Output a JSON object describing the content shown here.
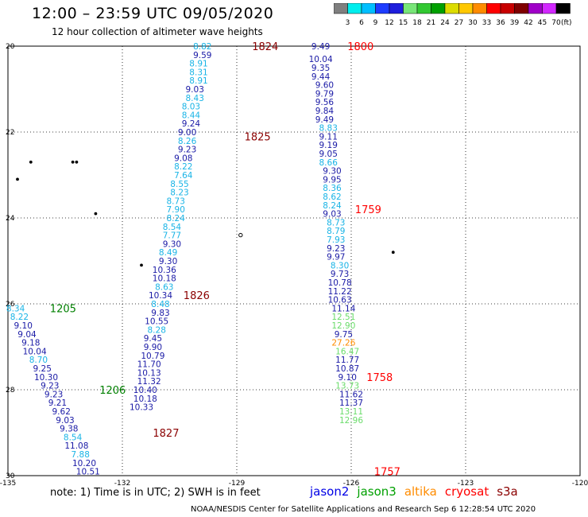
{
  "header": {
    "title": "12:00 – 23:59 UTC 09/05/2020",
    "subtitle": "12 hour collection of altimeter wave heights"
  },
  "scale": {
    "unit": "(ft)",
    "labels": [
      "3",
      "6",
      "9",
      "12",
      "15",
      "18",
      "21",
      "24",
      "27",
      "30",
      "33",
      "36",
      "39",
      "42",
      "45",
      "70"
    ],
    "colors": [
      "#7f7f7f",
      "#00eeee",
      "#00bfff",
      "#1e3cff",
      "#1e1edc",
      "#78e678",
      "#32c832",
      "#00a000",
      "#dcdc00",
      "#ffc800",
      "#ff8c00",
      "#ff0000",
      "#c80000",
      "#7f0000",
      "#a000c8",
      "#d228ff",
      "#000000"
    ]
  },
  "map": {
    "xticks": [
      {
        "v": -135,
        "t": "-135"
      },
      {
        "v": -132,
        "t": "-132"
      },
      {
        "v": -129,
        "t": "-129"
      },
      {
        "v": -126,
        "t": "-126"
      },
      {
        "v": -123,
        "t": "-123"
      },
      {
        "v": -120,
        "t": "-120"
      }
    ],
    "yticks": [
      {
        "v": 20,
        "t": "20"
      },
      {
        "v": 22,
        "t": "22"
      },
      {
        "v": 24,
        "t": "24"
      },
      {
        "v": 26,
        "t": "26"
      },
      {
        "v": 28,
        "t": "28"
      },
      {
        "v": 30,
        "t": "30"
      }
    ],
    "islands": [
      {
        "lon": -134.4,
        "lat": 22.7,
        "shape": "dot"
      },
      {
        "lon": -134.75,
        "lat": 23.1,
        "shape": "dot"
      },
      {
        "lon": -133.3,
        "lat": 22.7,
        "shape": "dot"
      },
      {
        "lon": -133.2,
        "lat": 22.7,
        "shape": "dot"
      },
      {
        "lon": -132.7,
        "lat": 23.9,
        "shape": "dot"
      },
      {
        "lon": -131.5,
        "lat": 25.1,
        "shape": "dot"
      },
      {
        "lon": -128.9,
        "lat": 24.4,
        "shape": "ring"
      },
      {
        "lon": -124.9,
        "lat": 24.8,
        "shape": "dot"
      }
    ]
  },
  "chart_data": {
    "type": "scatter",
    "title": "12:00 – 23:59 UTC 09/05/2020",
    "subtitle": "12 hour collection of altimeter wave heights",
    "x_axis": {
      "range": [
        -135,
        -120
      ],
      "ticks": [
        -135,
        -132,
        -129,
        -126,
        -123,
        -120
      ]
    },
    "y_axis": {
      "range": [
        20,
        30
      ],
      "ticks": [
        20,
        22,
        24,
        26,
        28,
        30
      ]
    },
    "grid": true,
    "value_unit": "ft",
    "series": [
      {
        "name": "jason2",
        "color": "#0000c8",
        "time_labels": [
          {
            "t": "1824",
            "lon": -128.6,
            "lat": 20.0,
            "color": "#8b0000"
          },
          {
            "t": "1825",
            "lon": -128.8,
            "lat": 22.1,
            "color": "#8b0000"
          },
          {
            "t": "1826",
            "lon": -130.4,
            "lat": 25.8,
            "color": "#8b0000"
          },
          {
            "t": "1827",
            "lon": -131.2,
            "lat": 29.0,
            "color": "#8b0000"
          }
        ],
        "points": [
          {
            "lon": -129.9,
            "lat": 20.0,
            "v": "8.82"
          },
          {
            "lon": -129.9,
            "lat": 20.2,
            "v": "9.59"
          },
          {
            "lon": -130.0,
            "lat": 20.4,
            "v": "8.91"
          },
          {
            "lon": -130.0,
            "lat": 20.6,
            "v": "8.31"
          },
          {
            "lon": -130.0,
            "lat": 20.8,
            "v": "8.91"
          },
          {
            "lon": -130.1,
            "lat": 21.0,
            "v": "9.03"
          },
          {
            "lon": -130.1,
            "lat": 21.2,
            "v": "8.43"
          },
          {
            "lon": -130.2,
            "lat": 21.4,
            "v": "8.03"
          },
          {
            "lon": -130.2,
            "lat": 21.6,
            "v": "8.44"
          },
          {
            "lon": -130.2,
            "lat": 21.8,
            "v": "9.24"
          },
          {
            "lon": -130.3,
            "lat": 22.0,
            "v": "9.00"
          },
          {
            "lon": -130.3,
            "lat": 22.2,
            "v": "8.26"
          },
          {
            "lon": -130.3,
            "lat": 22.4,
            "v": "9.23"
          },
          {
            "lon": -130.4,
            "lat": 22.6,
            "v": "9.08"
          },
          {
            "lon": -130.4,
            "lat": 22.8,
            "v": "8.22"
          },
          {
            "lon": -130.4,
            "lat": 23.0,
            "v": "7.64"
          },
          {
            "lon": -130.5,
            "lat": 23.2,
            "v": "8.55"
          },
          {
            "lon": -130.5,
            "lat": 23.4,
            "v": "8.23"
          },
          {
            "lon": -130.6,
            "lat": 23.6,
            "v": "8.73"
          },
          {
            "lon": -130.6,
            "lat": 23.8,
            "v": "7.90"
          },
          {
            "lon": -130.6,
            "lat": 24.0,
            "v": "8.24"
          },
          {
            "lon": -130.7,
            "lat": 24.2,
            "v": "8.54"
          },
          {
            "lon": -130.7,
            "lat": 24.4,
            "v": "7.77"
          },
          {
            "lon": -130.7,
            "lat": 24.6,
            "v": "9.30"
          },
          {
            "lon": -130.8,
            "lat": 24.8,
            "v": "8.49"
          },
          {
            "lon": -130.8,
            "lat": 25.0,
            "v": "9.30"
          },
          {
            "lon": -130.9,
            "lat": 25.2,
            "v": "10.36"
          },
          {
            "lon": -130.9,
            "lat": 25.4,
            "v": "10.18"
          },
          {
            "lon": -130.9,
            "lat": 25.6,
            "v": "8.63"
          },
          {
            "lon": -131.0,
            "lat": 25.8,
            "v": "10.34"
          },
          {
            "lon": -131.0,
            "lat": 26.0,
            "v": "8.48"
          },
          {
            "lon": -131.0,
            "lat": 26.2,
            "v": "9.83"
          },
          {
            "lon": -131.1,
            "lat": 26.4,
            "v": "10.55"
          },
          {
            "lon": -131.1,
            "lat": 26.6,
            "v": "8.28"
          },
          {
            "lon": -131.2,
            "lat": 26.8,
            "v": "9.45"
          },
          {
            "lon": -131.2,
            "lat": 27.0,
            "v": "9.90"
          },
          {
            "lon": -131.2,
            "lat": 27.2,
            "v": "10.79"
          },
          {
            "lon": -131.3,
            "lat": 27.4,
            "v": "11.70"
          },
          {
            "lon": -131.3,
            "lat": 27.6,
            "v": "10.13"
          },
          {
            "lon": -131.3,
            "lat": 27.8,
            "v": "11.32"
          },
          {
            "lon": -131.4,
            "lat": 28.0,
            "v": "10.40"
          },
          {
            "lon": -131.4,
            "lat": 28.2,
            "v": "10.18"
          },
          {
            "lon": -131.5,
            "lat": 28.4,
            "v": "10.33"
          }
        ]
      },
      {
        "name": "jason3",
        "color": "#00a000",
        "time_labels": [
          {
            "t": "1205",
            "lon": -133.9,
            "lat": 26.1,
            "color": "#008000"
          },
          {
            "t": "1206",
            "lon": -132.6,
            "lat": 28.0,
            "color": "#008000"
          }
        ],
        "points": [
          {
            "lon": -134.8,
            "lat": 26.1,
            "v": "8.34"
          },
          {
            "lon": -134.7,
            "lat": 26.3,
            "v": "8.22"
          },
          {
            "lon": -134.6,
            "lat": 26.5,
            "v": "9.10"
          },
          {
            "lon": -134.5,
            "lat": 26.7,
            "v": "9.04"
          },
          {
            "lon": -134.4,
            "lat": 26.9,
            "v": "9.18"
          },
          {
            "lon": -134.3,
            "lat": 27.1,
            "v": "10.04"
          },
          {
            "lon": -134.2,
            "lat": 27.3,
            "v": "8.70"
          },
          {
            "lon": -134.1,
            "lat": 27.5,
            "v": "9.25"
          },
          {
            "lon": -134.0,
            "lat": 27.7,
            "v": "10.30"
          },
          {
            "lon": -133.9,
            "lat": 27.9,
            "v": "9.23"
          },
          {
            "lon": -133.8,
            "lat": 28.1,
            "v": "9.23"
          },
          {
            "lon": -133.7,
            "lat": 28.3,
            "v": "9.21"
          },
          {
            "lon": -133.6,
            "lat": 28.5,
            "v": "9.62"
          },
          {
            "lon": -133.5,
            "lat": 28.7,
            "v": "9.03"
          },
          {
            "lon": -133.4,
            "lat": 28.9,
            "v": "9.38"
          },
          {
            "lon": -133.3,
            "lat": 29.1,
            "v": "8.54"
          },
          {
            "lon": -133.2,
            "lat": 29.3,
            "v": "11.08"
          },
          {
            "lon": -133.1,
            "lat": 29.5,
            "v": "7.88"
          },
          {
            "lon": -133.0,
            "lat": 29.7,
            "v": "10.20"
          },
          {
            "lon": -132.9,
            "lat": 29.9,
            "v": "10.51"
          }
        ]
      },
      {
        "name": "altika",
        "color": "#ff8c00",
        "time_labels": [
          {
            "t": "1800",
            "lon": -126.1,
            "lat": 20.0,
            "color": "#ff0000"
          },
          {
            "t": "1759",
            "lon": -125.9,
            "lat": 23.8,
            "color": "#ff0000"
          },
          {
            "t": "1758",
            "lon": -125.6,
            "lat": 27.7,
            "color": "#ff0000"
          },
          {
            "t": "1757",
            "lon": -125.4,
            "lat": 29.9,
            "color": "#ff0000"
          }
        ],
        "points": [
          {
            "lon": -126.8,
            "lat": 20.0,
            "v": "9.49"
          },
          {
            "lon": -126.8,
            "lat": 20.3,
            "v": "10.04"
          },
          {
            "lon": -126.8,
            "lat": 20.5,
            "v": "9.35"
          },
          {
            "lon": -126.8,
            "lat": 20.7,
            "v": "9.44"
          },
          {
            "lon": -126.7,
            "lat": 20.9,
            "v": "9.60"
          },
          {
            "lon": -126.7,
            "lat": 21.1,
            "v": "9.79"
          },
          {
            "lon": -126.7,
            "lat": 21.3,
            "v": "9.56"
          },
          {
            "lon": -126.7,
            "lat": 21.5,
            "v": "9.84"
          },
          {
            "lon": -126.7,
            "lat": 21.7,
            "v": "9.49"
          },
          {
            "lon": -126.6,
            "lat": 21.9,
            "v": "8.83"
          },
          {
            "lon": -126.6,
            "lat": 22.1,
            "v": "9.11"
          },
          {
            "lon": -126.6,
            "lat": 22.3,
            "v": "9.19"
          },
          {
            "lon": -126.6,
            "lat": 22.5,
            "v": "9.05"
          },
          {
            "lon": -126.6,
            "lat": 22.7,
            "v": "8.66"
          },
          {
            "lon": -126.5,
            "lat": 22.9,
            "v": "9.30"
          },
          {
            "lon": -126.5,
            "lat": 23.1,
            "v": "9.95"
          },
          {
            "lon": -126.5,
            "lat": 23.3,
            "v": "8.36"
          },
          {
            "lon": -126.5,
            "lat": 23.5,
            "v": "8.62"
          },
          {
            "lon": -126.5,
            "lat": 23.7,
            "v": "8.24"
          },
          {
            "lon": -126.5,
            "lat": 23.9,
            "v": "9.03"
          },
          {
            "lon": -126.4,
            "lat": 24.1,
            "v": "8.73"
          },
          {
            "lon": -126.4,
            "lat": 24.3,
            "v": "8.79"
          },
          {
            "lon": -126.4,
            "lat": 24.5,
            "v": "7.93"
          },
          {
            "lon": -126.4,
            "lat": 24.7,
            "v": "9.23"
          },
          {
            "lon": -126.4,
            "lat": 24.9,
            "v": "9.97"
          },
          {
            "lon": -126.3,
            "lat": 25.1,
            "v": "8.30"
          },
          {
            "lon": -126.3,
            "lat": 25.3,
            "v": "9.73"
          },
          {
            "lon": -126.3,
            "lat": 25.5,
            "v": "10.78"
          },
          {
            "lon": -126.3,
            "lat": 25.7,
            "v": "11.22"
          },
          {
            "lon": -126.3,
            "lat": 25.9,
            "v": "10.63"
          },
          {
            "lon": -126.2,
            "lat": 26.1,
            "v": "11.14"
          },
          {
            "lon": -126.2,
            "lat": 26.3,
            "v": "12.51"
          },
          {
            "lon": -126.2,
            "lat": 26.5,
            "v": "12.90"
          },
          {
            "lon": -126.2,
            "lat": 26.7,
            "v": "9.75"
          },
          {
            "lon": -126.2,
            "lat": 26.9,
            "v": "27.26"
          },
          {
            "lon": -126.1,
            "lat": 27.1,
            "v": "16.47"
          },
          {
            "lon": -126.1,
            "lat": 27.3,
            "v": "11.77"
          },
          {
            "lon": -126.1,
            "lat": 27.5,
            "v": "10.87"
          },
          {
            "lon": -126.1,
            "lat": 27.7,
            "v": "9.10"
          },
          {
            "lon": -126.1,
            "lat": 27.9,
            "v": "13.73"
          },
          {
            "lon": -126.0,
            "lat": 28.1,
            "v": "11.62"
          },
          {
            "lon": -126.0,
            "lat": 28.3,
            "v": "11.37"
          },
          {
            "lon": -126.0,
            "lat": 28.5,
            "v": "13.11"
          },
          {
            "lon": -126.0,
            "lat": 28.7,
            "v": "12.96"
          }
        ]
      }
    ]
  },
  "footer": {
    "note": "note:  1) Time is in UTC;  2) SWH is in feet",
    "satellites": [
      {
        "name": "jason2",
        "color": "#0000e6"
      },
      {
        "name": "jason3",
        "color": "#00a000"
      },
      {
        "name": "altika",
        "color": "#ff8c00"
      },
      {
        "name": "cryosat",
        "color": "#ff0000"
      },
      {
        "name": "s3a",
        "color": "#8b0000"
      }
    ],
    "credit": "NOAA/NESDIS Center for Satellite Applications and Research   Sep  6 12:28:54 UTC 2020"
  }
}
